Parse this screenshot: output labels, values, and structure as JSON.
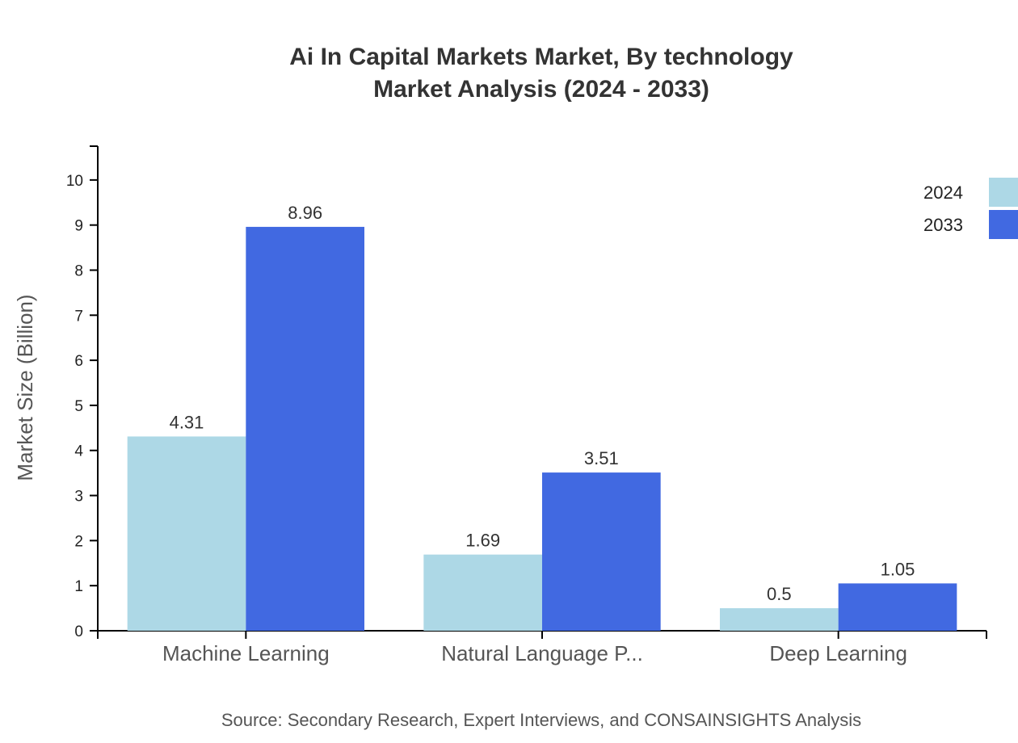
{
  "chart_data": {
    "type": "bar",
    "title_lines": [
      "Ai In Capital Markets Market, By technology",
      "Market Analysis (2024 - 2033)"
    ],
    "xlabel": "",
    "ylabel": "Market Size (Billion)",
    "categories": [
      "Machine Learning",
      "Natural Language P...",
      "Deep Learning"
    ],
    "series": [
      {
        "name": "2024",
        "values": [
          4.31,
          1.69,
          0.5
        ],
        "value_labels": [
          "4.31",
          "1.69",
          "0.5"
        ],
        "color": "#add8e6"
      },
      {
        "name": "2033",
        "values": [
          8.96,
          3.51,
          1.05
        ],
        "value_labels": [
          "8.96",
          "3.51",
          "1.05"
        ],
        "color": "#4169e1"
      }
    ],
    "ylim": [
      0,
      10.75
    ],
    "yticks": [
      0,
      1,
      2,
      3,
      4,
      5,
      6,
      7,
      8,
      9,
      10
    ],
    "grid": false,
    "legend_position": "top-right",
    "source": "Source: Secondary Research, Expert Interviews, and CONSAINSIGHTS Analysis"
  }
}
